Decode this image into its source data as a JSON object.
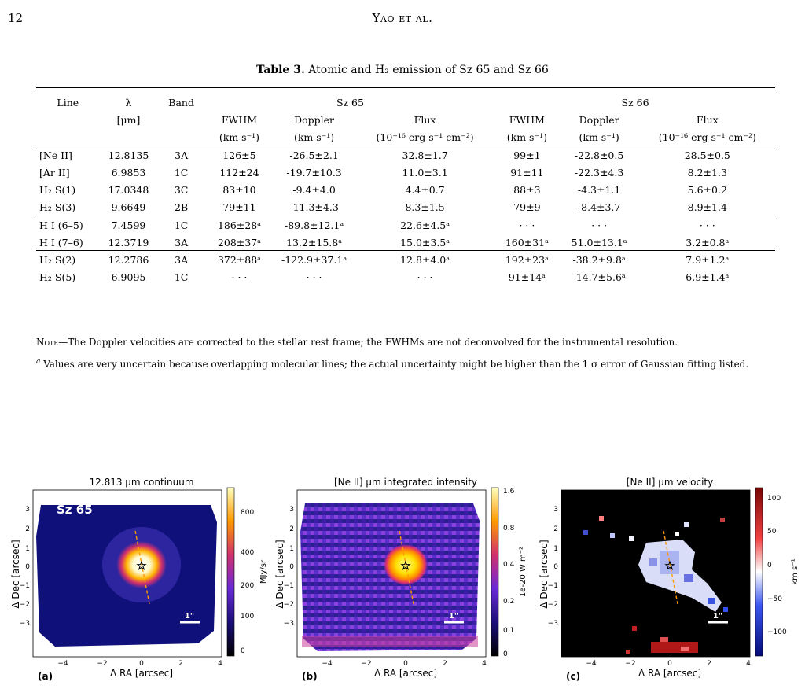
{
  "header": {
    "page_number": "12",
    "running_title": "Yao et al."
  },
  "table": {
    "label": "Table 3.",
    "caption": "Atomic and H₂ emission of Sz 65 and Sz 66",
    "columns": {
      "line": "Line",
      "lambda": "λ",
      "band": "Band",
      "group_a": "Sz 65",
      "group_b": "Sz 66",
      "lambda_unit": "[μm]",
      "fwhm": "FWHM",
      "doppler": "Doppler",
      "flux": "Flux",
      "vel_unit": "(km s⁻¹)",
      "flux_unit": "(10⁻¹⁶ erg s⁻¹ cm⁻²)"
    },
    "rows": [
      [
        "[Ne II]",
        "12.8135",
        "3A",
        "126±5",
        "-26.5±2.1",
        "32.8±1.7",
        "99±1",
        "-22.8±0.5",
        "28.5±0.5"
      ],
      [
        "[Ar II]",
        "6.9853",
        "1C",
        "112±24",
        "-19.7±10.3",
        "11.0±3.1",
        "91±11",
        "-22.3±4.3",
        "8.2±1.3"
      ],
      [
        "H₂ S(1)",
        "17.0348",
        "3C",
        "83±10",
        "-9.4±4.0",
        "4.4±0.7",
        "88±3",
        "-4.3±1.1",
        "5.6±0.2"
      ],
      [
        "H₂ S(3)",
        "9.6649",
        "2B",
        "79±11",
        "-11.3±4.3",
        "8.3±1.5",
        "79±9",
        "-8.4±3.7",
        "8.9±1.4"
      ],
      [
        "H I (6–5)",
        "7.4599",
        "1C",
        "186±28ᵃ",
        "-89.8±12.1ᵃ",
        "22.6±4.5ᵃ",
        "· · ·",
        "· · ·",
        "· · ·"
      ],
      [
        "H I (7–6)",
        "12.3719",
        "3A",
        "208±37ᵃ",
        "13.2±15.8ᵃ",
        "15.0±3.5ᵃ",
        "160±31ᵃ",
        "51.0±13.1ᵃ",
        "3.2±0.8ᵃ"
      ],
      [
        "H₂ S(2)",
        "12.2786",
        "3A",
        "372±88ᵃ",
        "-122.9±37.1ᵃ",
        "12.8±4.0ᵃ",
        "192±23ᵃ",
        "-38.2±9.8ᵃ",
        "7.9±1.2ᵃ"
      ],
      [
        "H₂ S(5)",
        "6.9095",
        "1C",
        "· · ·",
        "· · ·",
        "· · ·",
        "91±14ᵃ",
        "-14.7±5.6ᵃ",
        "6.9±1.4ᵃ"
      ]
    ],
    "note_label": "Note—",
    "note": "The Doppler velocities are corrected to the stellar rest frame; the FWHMs are not deconvolved for the instrumental resolution.",
    "footnote_mark": "a",
    "footnote": "Values are very uncertain because overlapping molecular lines; the actual uncertainty might be higher than the 1 σ error of Gaussian fitting listed."
  },
  "figure": {
    "panels": [
      {
        "title": "12.813 μm continuum",
        "tag": "(a)",
        "source_label": "Sz 65",
        "xlabel": "Δ RA [arcsec]",
        "ylabel": "Δ Dec [arcsec]",
        "colorbar_label": "MJy/sr",
        "colorbar_ticks": [
          "800",
          "400",
          "200",
          "100",
          "0"
        ],
        "scale_label": "1\""
      },
      {
        "title": "[Ne II] μm integrated intensity",
        "tag": "(b)",
        "source_label": "",
        "xlabel": "Δ RA [arcsec]",
        "ylabel": "Δ Dec [arcsec]",
        "colorbar_label": "1e-20 W m⁻²",
        "colorbar_ticks": [
          "1.6",
          "0.8",
          "0.4",
          "0.2",
          "0.1",
          "0"
        ],
        "scale_label": "1\""
      },
      {
        "title": "[Ne II] μm velocity",
        "tag": "(c)",
        "source_label": "",
        "xlabel": "Δ RA [arcsec]",
        "ylabel": "Δ Dec [arcsec]",
        "colorbar_label": "km s⁻¹",
        "colorbar_ticks": [
          "100",
          "50",
          "0",
          "−50",
          "−100"
        ],
        "scale_label": "1\""
      }
    ],
    "x_ticks": [
      "−4",
      "−2",
      "0",
      "2",
      "4"
    ],
    "y_ticks": [
      "3",
      "2",
      "1",
      "0",
      "−1",
      "−2",
      "−3"
    ]
  }
}
